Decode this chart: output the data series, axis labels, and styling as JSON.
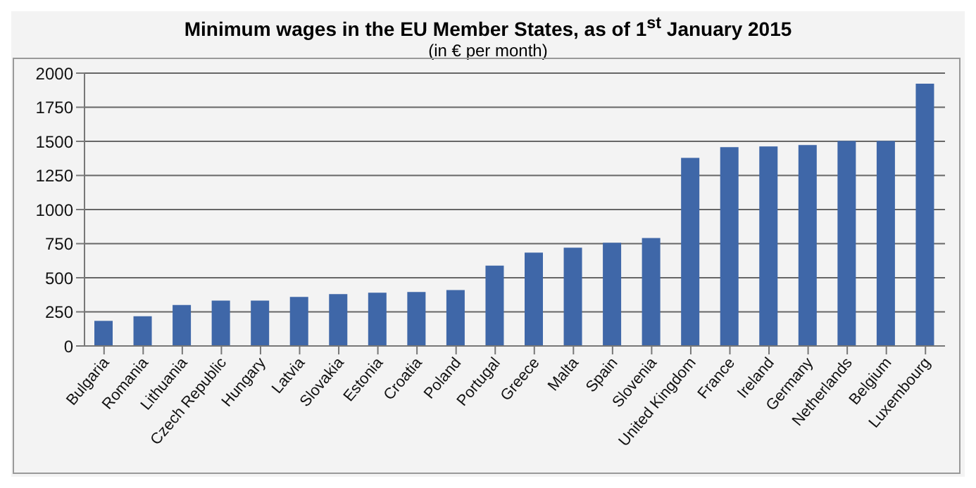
{
  "chart_data": {
    "type": "bar",
    "title": "Minimum wages in the EU Member States, as of 1$^{st}$ January 2015",
    "subtitle": "(in € per month)",
    "categories": [
      "Bulgaria",
      "Romania",
      "Lithuania",
      "Czech Republic",
      "Hungary",
      "Latvia",
      "Slovakia",
      "Estonia",
      "Croatia",
      "Poland",
      "Portugal",
      "Greece",
      "Malta",
      "Spain",
      "Slovenia",
      "United Kingdom",
      "France",
      "Ireland",
      "Germany",
      "Netherlands",
      "Belgium",
      "Luxembourg"
    ],
    "values": [
      184,
      218,
      300,
      332,
      333,
      360,
      380,
      390,
      396,
      410,
      589,
      684,
      720,
      757,
      791,
      1379,
      1458,
      1462,
      1473,
      1502,
      1502,
      1923
    ],
    "color": "#3f67a8",
    "ylim": [
      0,
      2000
    ],
    "yticks": [
      0,
      250,
      500,
      750,
      1000,
      1250,
      1500,
      1750,
      2000
    ],
    "grid": "y"
  }
}
